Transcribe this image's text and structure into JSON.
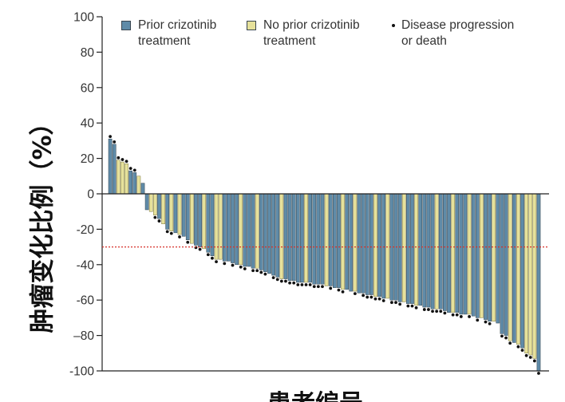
{
  "chart_data": {
    "type": "bar",
    "xlabel": "患者编号",
    "ylabel": "肿瘤变化比例（%）",
    "ylim": [
      -100,
      100
    ],
    "yticks": [
      100,
      80,
      60,
      40,
      20,
      0,
      -20,
      -40,
      -60,
      -80,
      -100
    ],
    "ytick_labels": [
      "100",
      "80",
      "60",
      "40",
      "20",
      "0",
      "-20",
      "-40",
      "-60",
      "–80",
      "-100"
    ],
    "grid": false,
    "legend_placement": "top",
    "legend": [
      {
        "label_lines": [
          "Prior crizotinib",
          "treatment"
        ],
        "marker": "square",
        "color": "#5f8ba8"
      },
      {
        "label_lines": [
          "No prior crizotinib",
          "treatment"
        ],
        "marker": "square",
        "color": "#e6e19b"
      },
      {
        "label_lines": [
          "Disease progression",
          "or death"
        ],
        "marker": "dot",
        "color": "#111111"
      }
    ],
    "reference_line": {
      "y": -30,
      "color": "#d7322b",
      "style": "dotted"
    },
    "values": [
      31,
      28,
      19,
      18,
      17,
      13,
      12,
      10,
      6,
      -9,
      -10,
      -12,
      -14,
      -17,
      -20,
      -21,
      -22,
      -23,
      -24,
      -26,
      -28,
      -29,
      -30,
      -31,
      -33,
      -35,
      -37,
      -37,
      -38,
      -38,
      -39,
      -40,
      -40,
      -41,
      -41,
      -42,
      -42,
      -43,
      -44,
      -45,
      -46,
      -47,
      -48,
      -48,
      -49,
      -49,
      -50,
      -50,
      -50,
      -50,
      -51,
      -51,
      -51,
      -52,
      -52,
      -53,
      -53,
      -54,
      -54,
      -55,
      -55,
      -56,
      -56,
      -57,
      -57,
      -58,
      -58,
      -59,
      -59,
      -60,
      -60,
      -61,
      -61,
      -62,
      -62,
      -63,
      -63,
      -64,
      -64,
      -65,
      -65,
      -65,
      -66,
      -67,
      -67,
      -67,
      -68,
      -68,
      -68,
      -69,
      -70,
      -70,
      -71,
      -72,
      -72,
      -73,
      -79,
      -80,
      -83,
      -84,
      -85,
      -87,
      -90,
      -91,
      -93,
      -100
    ],
    "prior_crizotinib": [
      true,
      true,
      false,
      false,
      false,
      true,
      true,
      false,
      true,
      true,
      false,
      false,
      true,
      false,
      true,
      false,
      true,
      false,
      true,
      true,
      false,
      true,
      true,
      false,
      true,
      true,
      false,
      false,
      true,
      true,
      true,
      true,
      false,
      true,
      true,
      true,
      false,
      true,
      true,
      true,
      true,
      true,
      false,
      true,
      true,
      true,
      true,
      true,
      false,
      true,
      true,
      true,
      true,
      false,
      true,
      true,
      true,
      false,
      true,
      true,
      false,
      true,
      true,
      true,
      true,
      false,
      true,
      true,
      false,
      true,
      true,
      true,
      false,
      true,
      true,
      false,
      true,
      true,
      true,
      true,
      false,
      true,
      true,
      true,
      false,
      true,
      true,
      true,
      false,
      true,
      true,
      false,
      true,
      true,
      false,
      true,
      true,
      true,
      false,
      true,
      false,
      true,
      false,
      false,
      false,
      true
    ],
    "progression_or_death": [
      true,
      true,
      true,
      true,
      true,
      true,
      true,
      false,
      false,
      false,
      false,
      true,
      true,
      false,
      true,
      true,
      false,
      true,
      false,
      true,
      false,
      true,
      true,
      false,
      true,
      true,
      true,
      false,
      true,
      false,
      true,
      false,
      true,
      true,
      false,
      true,
      true,
      true,
      true,
      false,
      true,
      true,
      true,
      true,
      true,
      true,
      true,
      true,
      true,
      true,
      true,
      true,
      true,
      false,
      true,
      false,
      true,
      true,
      false,
      false,
      true,
      false,
      true,
      true,
      true,
      true,
      true,
      true,
      false,
      true,
      true,
      true,
      false,
      true,
      true,
      true,
      false,
      true,
      true,
      true,
      true,
      true,
      true,
      false,
      true,
      true,
      true,
      false,
      true,
      false,
      true,
      false,
      true,
      true,
      false,
      false,
      true,
      true,
      true,
      false,
      true,
      true,
      true,
      true,
      true,
      true
    ]
  }
}
